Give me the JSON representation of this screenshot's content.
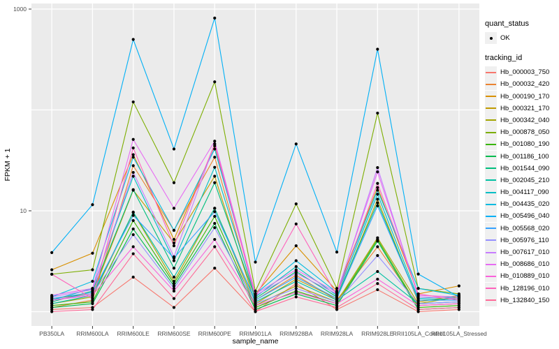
{
  "chart_data": {
    "type": "line",
    "title": "",
    "xlabel": "sample_name",
    "ylabel": "FPKM + 1",
    "y_scale": "log10",
    "ylim": [
      0.9,
      1100
    ],
    "y_tick_labels": [
      "1000",
      "10"
    ],
    "y_tick_values": [
      1000,
      10
    ],
    "y_gridline_values": [
      1000,
      100,
      10,
      1
    ],
    "grid": true,
    "legend_position": "right",
    "point_color": "#000000",
    "panel_bg": "#ebebeb",
    "grid_color": "#ffffff",
    "axis_text_color": "#4d4d4d",
    "categories": [
      "PB350LA",
      "RRIM600LA",
      "RRIM600LE",
      "RRIM600SE",
      "RRIM600PE",
      "RRIM901LA",
      "RRIM928BA",
      "RRIM928LA",
      "RRIM928LE",
      "RRII105LA_Control",
      "RRII105LA_Stressed"
    ],
    "series": [
      {
        "name": "Hb_000003_750",
        "color": "#F8766D",
        "values": [
          1.05,
          1.1,
          2.2,
          1.1,
          2.7,
          1.0,
          1.9,
          1.05,
          1.65,
          1.0,
          1.05
        ]
      },
      {
        "name": "Hb_000032_420",
        "color": "#EA8331",
        "values": [
          1.1,
          1.3,
          28,
          6.4,
          34,
          1.3,
          2.3,
          1.3,
          4.4,
          1.15,
          1.2
        ]
      },
      {
        "name": "Hb_000190_170",
        "color": "#D89000",
        "values": [
          2.6,
          3.8,
          36,
          5.2,
          44,
          1.5,
          4.5,
          1.6,
          17,
          1.5,
          1.8
        ]
      },
      {
        "name": "Hb_000321_170",
        "color": "#C09B00",
        "values": [
          1.35,
          1.5,
          16,
          4.8,
          22,
          1.2,
          2.1,
          1.35,
          13,
          1.25,
          1.45
        ]
      },
      {
        "name": "Hb_000342_040",
        "color": "#A3A500",
        "values": [
          1.2,
          1.4,
          9.6,
          2.0,
          10.6,
          1.15,
          1.8,
          1.25,
          5.4,
          1.2,
          1.4
        ]
      },
      {
        "name": "Hb_000878_050",
        "color": "#7CAE00",
        "values": [
          2.35,
          2.6,
          120,
          19,
          190,
          1.6,
          11.7,
          1.7,
          93,
          1.7,
          1.5
        ]
      },
      {
        "name": "Hb_001080_190",
        "color": "#39B600",
        "values": [
          1.15,
          1.25,
          8.0,
          1.9,
          8.8,
          1.1,
          1.6,
          1.2,
          5.2,
          1.1,
          1.15
        ]
      },
      {
        "name": "Hb_001186_100",
        "color": "#00BB4E",
        "values": [
          1.1,
          1.2,
          6.6,
          1.8,
          7.5,
          1.05,
          1.5,
          1.15,
          5.0,
          1.05,
          1.1
        ]
      },
      {
        "name": "Hb_001544_090",
        "color": "#00BF7D",
        "values": [
          1.25,
          1.6,
          16.2,
          2.7,
          19,
          1.35,
          2.5,
          1.4,
          12,
          1.3,
          1.35
        ]
      },
      {
        "name": "Hb_002045_210",
        "color": "#00C1A3",
        "values": [
          1.2,
          1.45,
          9.7,
          2.2,
          10.6,
          1.25,
          2.0,
          1.3,
          2.5,
          1.2,
          1.25
        ]
      },
      {
        "name": "Hb_004117_090",
        "color": "#00BFC4",
        "values": [
          1.3,
          1.7,
          22,
          3.2,
          27,
          1.4,
          2.8,
          1.45,
          14.6,
          1.35,
          1.4
        ]
      },
      {
        "name": "Hb_004435_020",
        "color": "#00BAE0",
        "values": [
          1.4,
          2.0,
          34,
          6.4,
          41,
          1.5,
          3.2,
          1.55,
          16,
          1.7,
          1.45
        ]
      },
      {
        "name": "Hb_005496_040",
        "color": "#00B0F6",
        "values": [
          3.85,
          11.5,
          500,
          41,
          815,
          3.1,
          46,
          3.9,
          400,
          2.36,
          1.4
        ]
      },
      {
        "name": "Hb_005568_020",
        "color": "#35A2FF",
        "values": [
          1.35,
          1.55,
          9.0,
          3.4,
          9.8,
          1.3,
          2.2,
          1.35,
          11.2,
          1.3,
          1.3
        ]
      },
      {
        "name": "Hb_005976_110",
        "color": "#9590FF",
        "values": [
          1.3,
          1.5,
          5.8,
          1.7,
          6.8,
          1.2,
          1.7,
          1.25,
          3.6,
          1.2,
          1.25
        ]
      },
      {
        "name": "Hb_007617_010",
        "color": "#C77CFF",
        "values": [
          1.4,
          1.65,
          24,
          3.5,
          46,
          1.45,
          2.4,
          1.5,
          26.8,
          1.4,
          1.35
        ]
      },
      {
        "name": "Hb_008686_010",
        "color": "#E76BF3",
        "values": [
          1.45,
          1.7,
          51,
          10.6,
          49,
          1.5,
          2.6,
          1.55,
          24.3,
          1.45,
          1.4
        ]
      },
      {
        "name": "Hb_010889_010",
        "color": "#FA62DB",
        "values": [
          1.3,
          1.45,
          4.4,
          1.6,
          5.2,
          1.15,
          1.55,
          1.2,
          2.1,
          1.15,
          1.2
        ]
      },
      {
        "name": "Hb_128196_010",
        "color": "#FF62BC",
        "values": [
          2.35,
          1.35,
          42,
          4.5,
          46,
          1.4,
          7.4,
          1.45,
          18.7,
          1.5,
          1.3
        ]
      },
      {
        "name": "Hb_132840_150",
        "color": "#FF6A98",
        "values": [
          1.0,
          1.05,
          3.75,
          1.35,
          4.4,
          1.0,
          1.4,
          1.1,
          1.9,
          1.05,
          1.1
        ]
      }
    ]
  },
  "legend": {
    "quant_status_title": "quant_status",
    "quant_status_items": [
      {
        "label": "OK",
        "symbol": "point"
      }
    ],
    "tracking_id_title": "tracking_id"
  }
}
